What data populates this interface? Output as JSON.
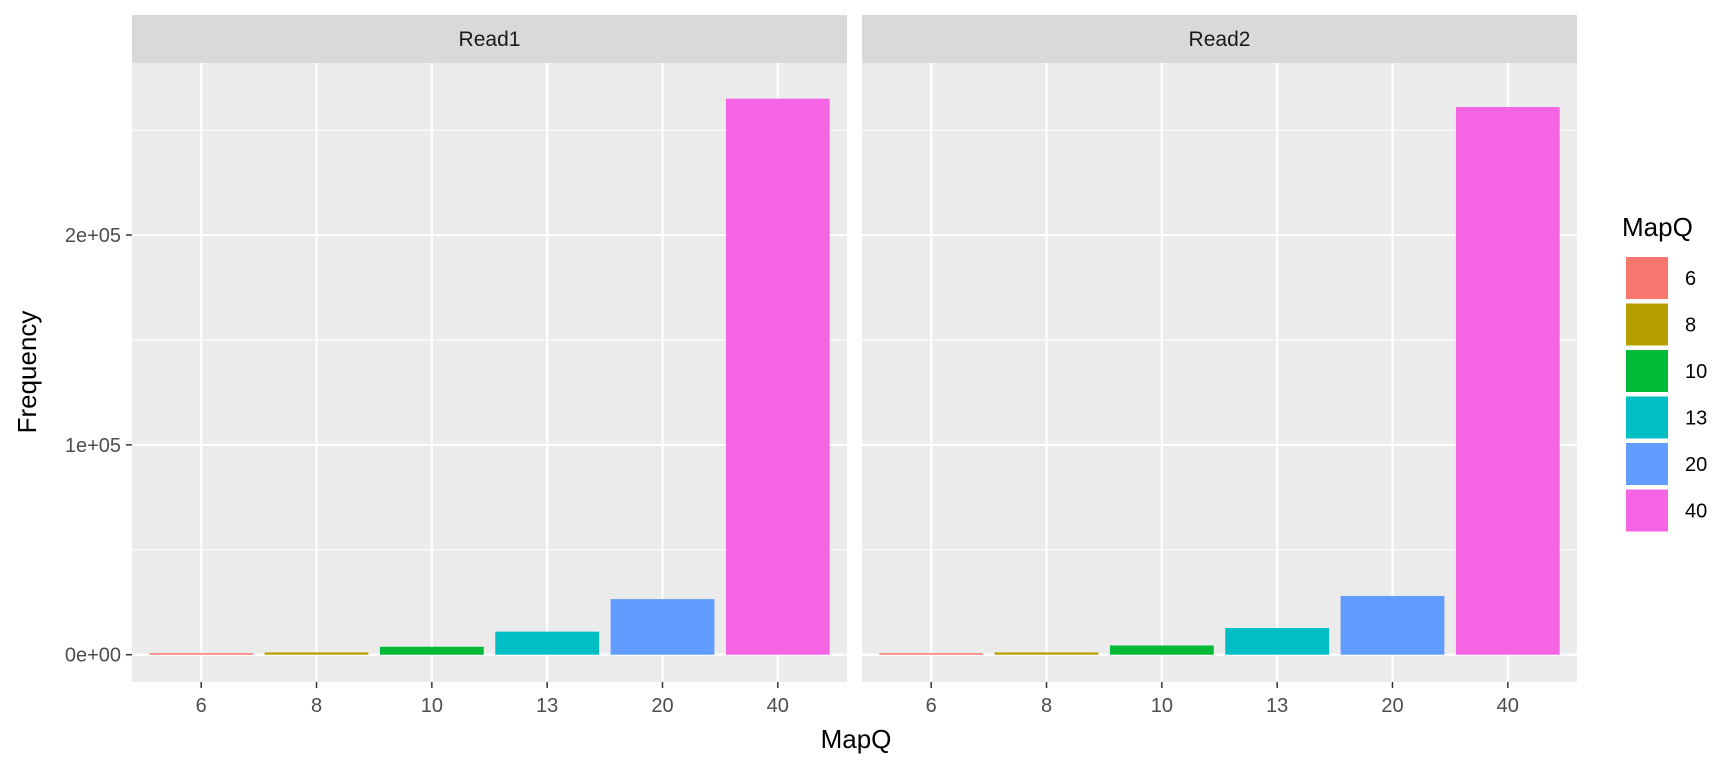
{
  "chart_data": {
    "type": "bar",
    "xlabel": "MapQ",
    "ylabel": "Frequency",
    "categories": [
      "6",
      "8",
      "10",
      "13",
      "20",
      "40"
    ],
    "ylim": [
      -13000,
      282000
    ],
    "y_ticks": [
      {
        "value": 0,
        "label": "0e+00"
      },
      {
        "value": 100000,
        "label": "1e+05"
      },
      {
        "value": 200000,
        "label": "2e+05"
      }
    ],
    "panels": [
      {
        "name": "Read1",
        "values": [
          400,
          1100,
          3800,
          11000,
          26500,
          265000
        ]
      },
      {
        "name": "Read2",
        "values": [
          400,
          1100,
          4400,
          12700,
          28000,
          261000
        ]
      }
    ],
    "legend": {
      "title": "MapQ",
      "position": "right",
      "items": [
        {
          "label": "6",
          "color": "#F8766D"
        },
        {
          "label": "8",
          "color": "#B79F00"
        },
        {
          "label": "10",
          "color": "#00BA38"
        },
        {
          "label": "13",
          "color": "#00BFC4"
        },
        {
          "label": "20",
          "color": "#619CFF"
        },
        {
          "label": "40",
          "color": "#F564E3"
        }
      ]
    },
    "colors": {
      "panel_background": "#EBEBEB",
      "strip_background": "#D9D9D9",
      "grid": "#FFFFFF"
    },
    "grid": true
  }
}
